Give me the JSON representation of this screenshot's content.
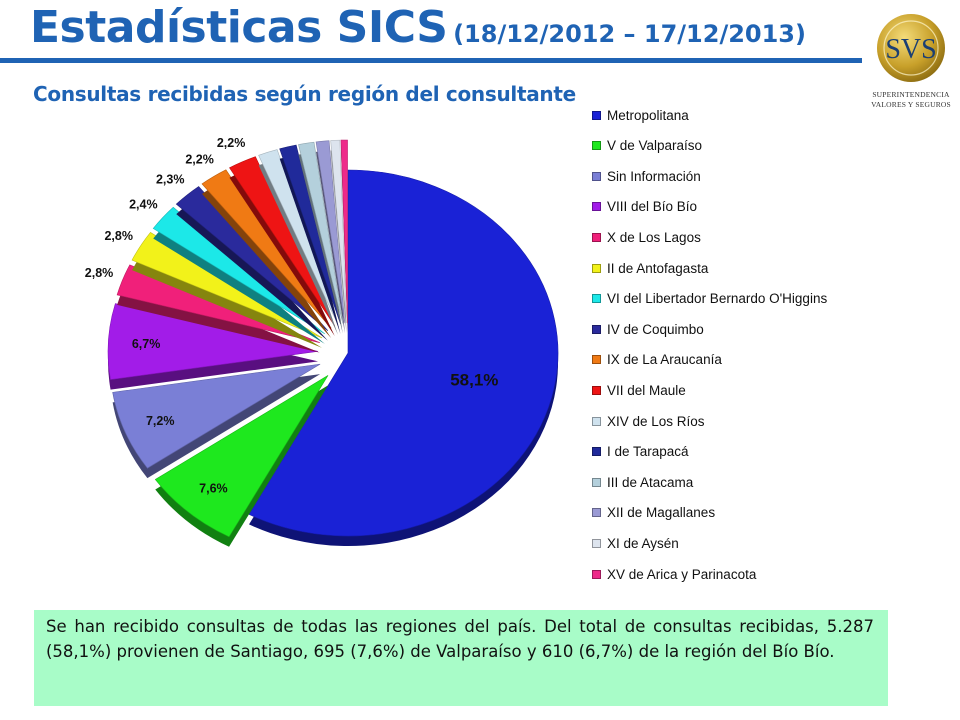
{
  "header": {
    "title": "Estadísticas SICS",
    "date_range": "(18/12/2012 – 17/12/2013)"
  },
  "logo": {
    "name": "svs-logo-icon",
    "text": "SVS",
    "line1": "SUPERINTENDENCIA",
    "line2": "VALORES Y SEGUROS",
    "colors": {
      "gold": "#c8a02a",
      "blue": "#1b3f73"
    }
  },
  "chart_data": {
    "type": "pie",
    "title": "Consultas recibidas según región del consultante",
    "legend_position": "right",
    "series": [
      {
        "name": "Metropolitana",
        "value": 58.1,
        "label": "58,1%",
        "color": "#1a22d6"
      },
      {
        "name": "V de Valparaíso",
        "value": 7.6,
        "label": "7,6%",
        "color": "#1ee81e"
      },
      {
        "name": "Sin Información",
        "value": 7.2,
        "label": "7,2%",
        "color": "#7a7fd6"
      },
      {
        "name": "VIII del Bío Bío",
        "value": 6.7,
        "label": "6,7%",
        "color": "#a21ce8"
      },
      {
        "name": "X de Los Lagos",
        "value": 2.8,
        "label": "2,8%",
        "color": "#f0207a"
      },
      {
        "name": "II de Antofagasta",
        "value": 2.8,
        "label": "2,8%",
        "color": "#f2f21a"
      },
      {
        "name": "VI del Libertador Bernardo O'Higgins",
        "value": 2.4,
        "label": "2,4%",
        "color": "#1ce8e8"
      },
      {
        "name": "IV de Coquimbo",
        "value": 2.3,
        "label": "2,3%",
        "color": "#2a2a9c"
      },
      {
        "name": "IX de La Araucanía",
        "value": 2.2,
        "label": "2,2%",
        "color": "#f07a14"
      },
      {
        "name": "VII del Maule",
        "value": 2.2,
        "label": "2,2%",
        "color": "#ee1414"
      },
      {
        "name": "XIV de Los Ríos",
        "value": 1.5,
        "label": "",
        "color": "#cfe2ee"
      },
      {
        "name": "I de Tarapacá",
        "value": 1.3,
        "label": "",
        "color": "#202a9a"
      },
      {
        "name": "III de Atacama",
        "value": 1.2,
        "label": "",
        "color": "#b4d0dc"
      },
      {
        "name": "XII de Magallanes",
        "value": 1.0,
        "label": "",
        "color": "#9a9ad4"
      },
      {
        "name": "XI de Aysén",
        "value": 0.7,
        "label": "",
        "color": "#dde4ee"
      },
      {
        "name": "XV de Arica y Parinacota",
        "value": 0.5,
        "label": "",
        "color": "#ee2a8a"
      }
    ]
  },
  "note": {
    "text": "Se han recibido consultas de todas las regiones del país. Del total de consultas recibidas, 5.287 (58,1%) provienen de Santiago, 695 (7,6%) de Valparaíso y 610 (6,7%) de la región del Bío Bío."
  }
}
